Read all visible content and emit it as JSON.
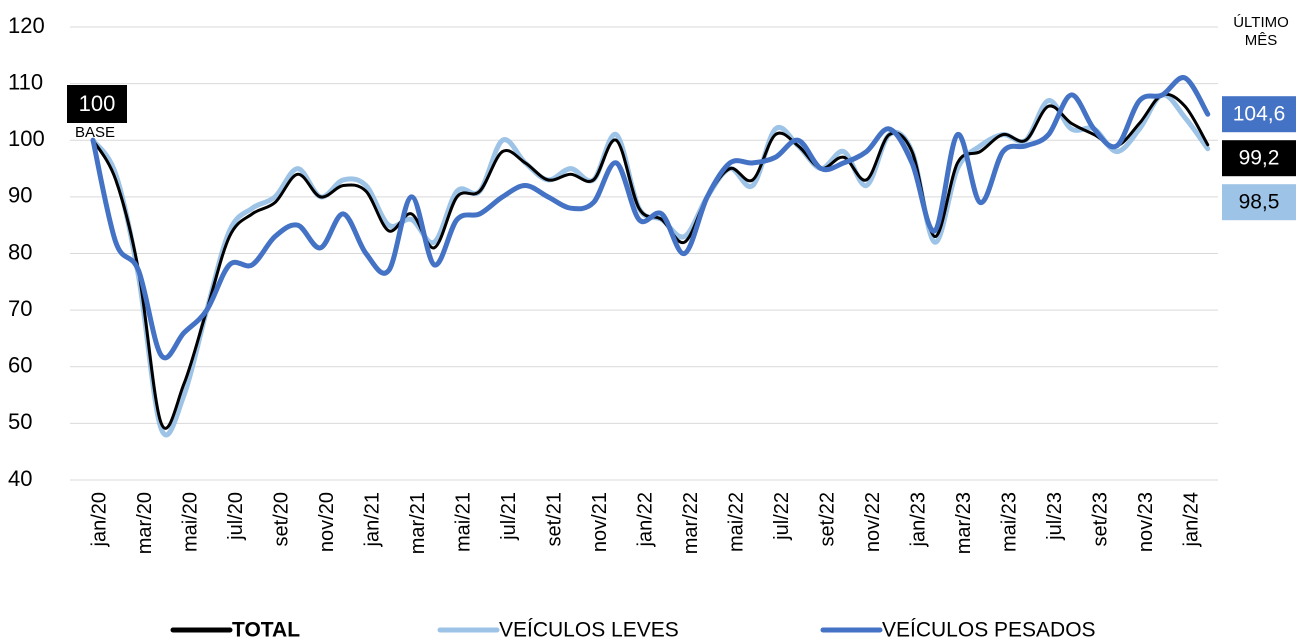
{
  "chart_data": {
    "type": "line",
    "categories": [
      "jan/20",
      null,
      "mar/20",
      null,
      "mai/20",
      null,
      "jul/20",
      null,
      "set/20",
      null,
      "nov/20",
      null,
      "jan/21",
      null,
      "mar/21",
      null,
      "mai/21",
      null,
      "jul/21",
      null,
      "set/21",
      null,
      "nov/21",
      null,
      "jan/22",
      null,
      "mar/22",
      null,
      "mai/22",
      null,
      "jul/22",
      null,
      "set/22",
      null,
      "nov/22",
      null,
      "jan/23",
      null,
      "mar/23",
      null,
      "mai/23",
      null,
      "jul/23",
      null,
      "set/23",
      null,
      "nov/23",
      null,
      "jan/24",
      null
    ],
    "series": [
      {
        "name": "VEÍCULOS LEVES",
        "color": "#9dc3e6",
        "values": [
          100,
          94,
          76,
          49,
          55,
          70,
          84,
          88,
          90,
          95,
          90,
          93,
          92,
          85,
          86,
          82,
          91,
          91,
          100,
          96,
          93,
          95,
          93,
          101,
          88,
          86,
          83,
          90,
          95,
          92,
          102,
          99,
          95,
          98,
          92,
          101,
          98,
          82,
          95,
          99,
          101,
          100,
          107,
          102,
          102,
          98,
          102,
          108,
          104,
          98.5
        ],
        "value_labels": [
          null,
          null,
          null,
          null,
          null,
          null,
          null,
          null,
          null,
          null,
          null,
          null,
          null,
          null,
          null,
          null,
          null,
          null,
          null,
          null,
          null,
          null,
          null,
          null,
          null,
          null,
          null,
          null,
          null,
          null,
          null,
          null,
          null,
          null,
          null,
          null,
          null,
          null,
          null,
          null,
          null,
          null,
          null,
          null,
          null,
          null,
          null,
          null,
          null,
          "98,5"
        ]
      },
      {
        "name": "TOTAL",
        "color": "#000000",
        "values": [
          100,
          93,
          77,
          50,
          57,
          70,
          83,
          87,
          89,
          94,
          90,
          92,
          91,
          84,
          87,
          81,
          90,
          91,
          98,
          96,
          93,
          94,
          93,
          100,
          88,
          86,
          82,
          90,
          95,
          93,
          101,
          99,
          95,
          97,
          93,
          101,
          98,
          83,
          96,
          98,
          101,
          100,
          106,
          103,
          101,
          99,
          103,
          108,
          106,
          99.2
        ],
        "value_labels": [
          null,
          null,
          null,
          null,
          null,
          null,
          null,
          null,
          null,
          null,
          null,
          null,
          null,
          null,
          null,
          null,
          null,
          null,
          null,
          null,
          null,
          null,
          null,
          null,
          null,
          null,
          null,
          null,
          null,
          null,
          null,
          null,
          null,
          null,
          null,
          null,
          null,
          null,
          null,
          null,
          null,
          null,
          null,
          null,
          null,
          null,
          null,
          null,
          null,
          "99,2"
        ]
      },
      {
        "name": "VEÍCULOS PESADOS",
        "color": "#4472c4",
        "values": [
          100,
          82,
          77,
          62,
          66,
          70,
          78,
          78,
          83,
          85,
          81,
          87,
          80,
          77,
          90,
          78,
          86,
          87,
          90,
          92,
          90,
          88,
          89,
          96,
          86,
          87,
          80,
          90,
          96,
          96,
          97,
          100,
          95,
          96,
          98,
          102,
          96,
          84,
          101,
          89,
          98,
          99,
          101,
          108,
          102,
          99,
          107,
          108,
          111,
          104.6
        ],
        "value_labels": [
          null,
          null,
          null,
          null,
          null,
          null,
          null,
          null,
          null,
          null,
          null,
          null,
          null,
          null,
          null,
          null,
          null,
          null,
          null,
          null,
          null,
          null,
          null,
          null,
          null,
          null,
          null,
          null,
          null,
          null,
          null,
          null,
          null,
          null,
          null,
          null,
          null,
          null,
          null,
          null,
          null,
          null,
          null,
          null,
          null,
          null,
          null,
          null,
          null,
          "104,6"
        ]
      }
    ],
    "legend_order": [
      1,
      0,
      2
    ],
    "ylim": [
      40,
      120
    ],
    "yticks": [
      40,
      50,
      60,
      70,
      80,
      90,
      100,
      110,
      120
    ],
    "grid": true,
    "annotations": {
      "base_value": "100",
      "base_caption": "BASE",
      "last_caption": "ÚLTIMO MÊS"
    }
  }
}
